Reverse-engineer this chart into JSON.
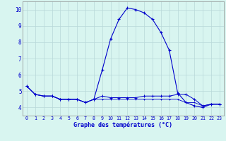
{
  "title": "Graphe des températures (°C)",
  "background_color": "#d8f5f0",
  "grid_color": "#b8d8d8",
  "line_color": "#0000cc",
  "hours": [
    0,
    1,
    2,
    3,
    4,
    5,
    6,
    7,
    8,
    9,
    10,
    11,
    12,
    13,
    14,
    15,
    16,
    17,
    18,
    19,
    20,
    21,
    22,
    23
  ],
  "temp_main": [
    5.3,
    4.8,
    4.7,
    4.7,
    4.5,
    4.5,
    4.5,
    4.3,
    4.5,
    6.3,
    8.2,
    9.4,
    10.1,
    10.0,
    9.8,
    9.4,
    8.6,
    7.5,
    4.9,
    4.3,
    4.1,
    4.0,
    4.2,
    4.2
  ],
  "temp_line2": [
    5.3,
    4.8,
    4.7,
    4.7,
    4.5,
    4.5,
    4.5,
    4.3,
    4.5,
    4.7,
    4.6,
    4.6,
    4.6,
    4.6,
    4.7,
    4.7,
    4.7,
    4.7,
    4.8,
    4.8,
    4.5,
    4.1,
    4.2,
    4.2
  ],
  "temp_line3": [
    5.3,
    4.8,
    4.7,
    4.7,
    4.5,
    4.5,
    4.5,
    4.3,
    4.5,
    4.5,
    4.5,
    4.5,
    4.5,
    4.5,
    4.5,
    4.5,
    4.5,
    4.5,
    4.5,
    4.3,
    4.3,
    4.1,
    4.2,
    4.2
  ],
  "ylim": [
    3.5,
    10.5
  ],
  "yticks": [
    4,
    5,
    6,
    7,
    8,
    9,
    10
  ],
  "xlim": [
    -0.5,
    23.5
  ]
}
